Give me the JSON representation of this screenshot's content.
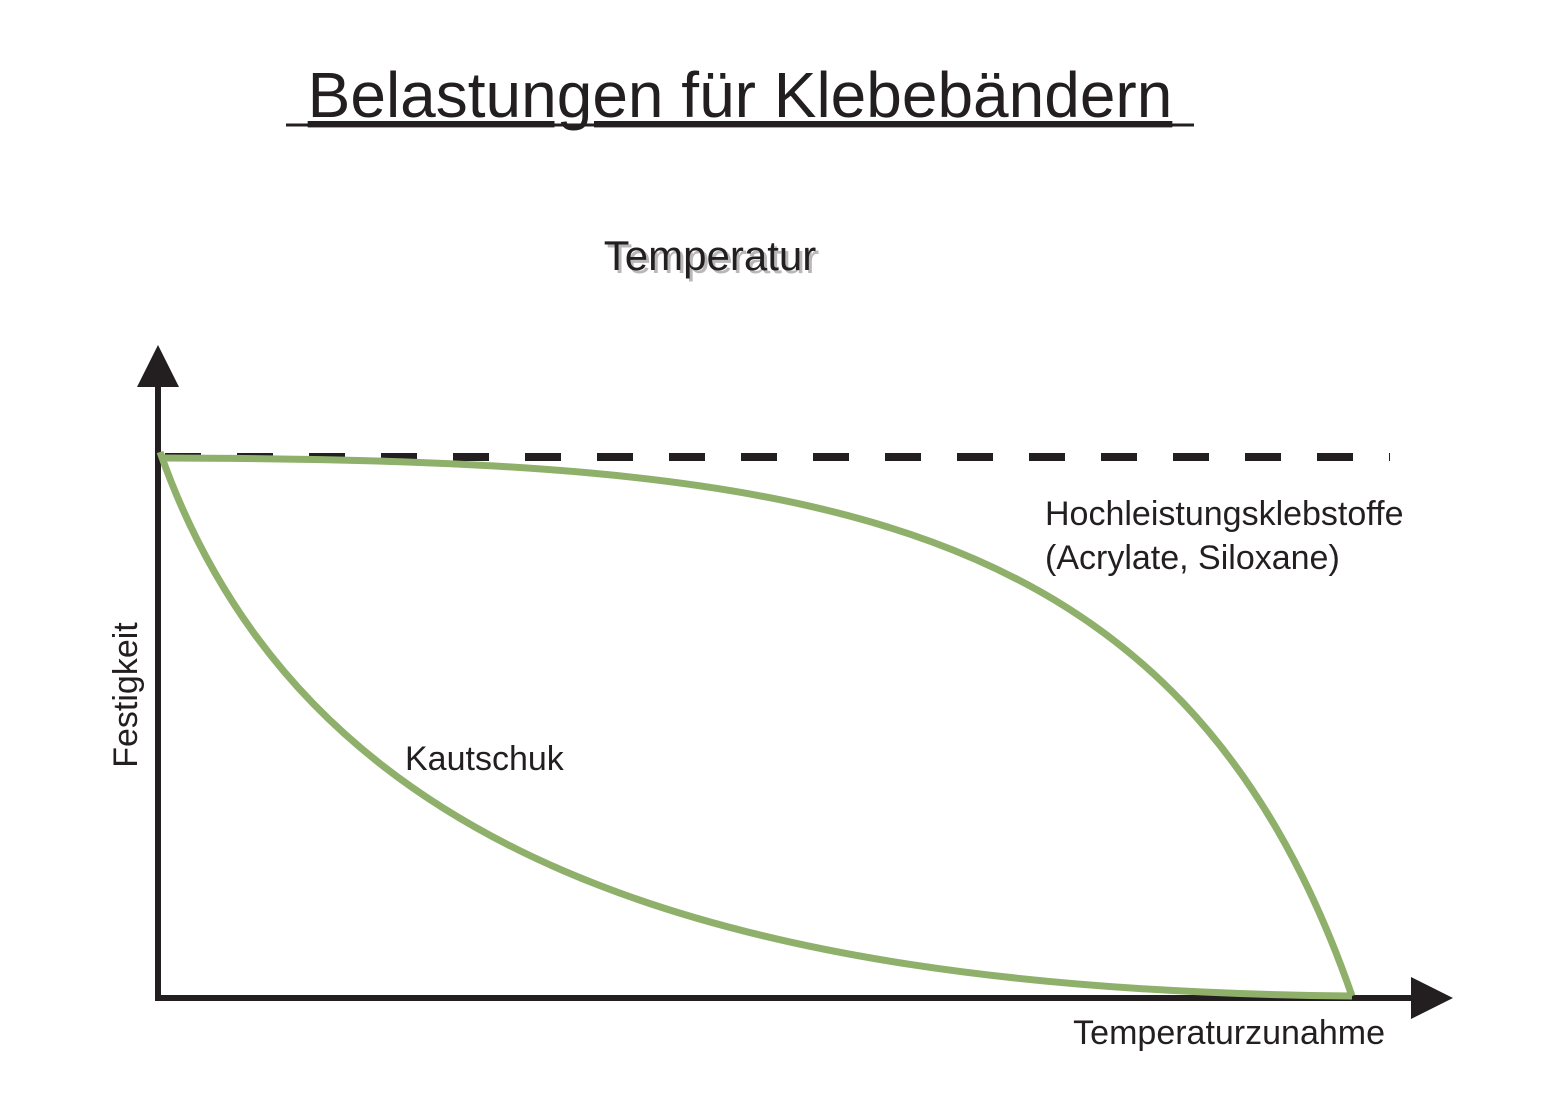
{
  "header": {
    "title": "Belastungen für Klebebändern",
    "subtitle": "Temperatur"
  },
  "axes": {
    "y_label": "Festigkeit",
    "x_label": "Temperaturzunahme"
  },
  "curves": [
    {
      "label_lines": [
        "Hochleistungsklebstoffe",
        "(Acrylate, Siloxane)"
      ]
    },
    {
      "label_lines": [
        "Kautschuk"
      ]
    }
  ]
}
